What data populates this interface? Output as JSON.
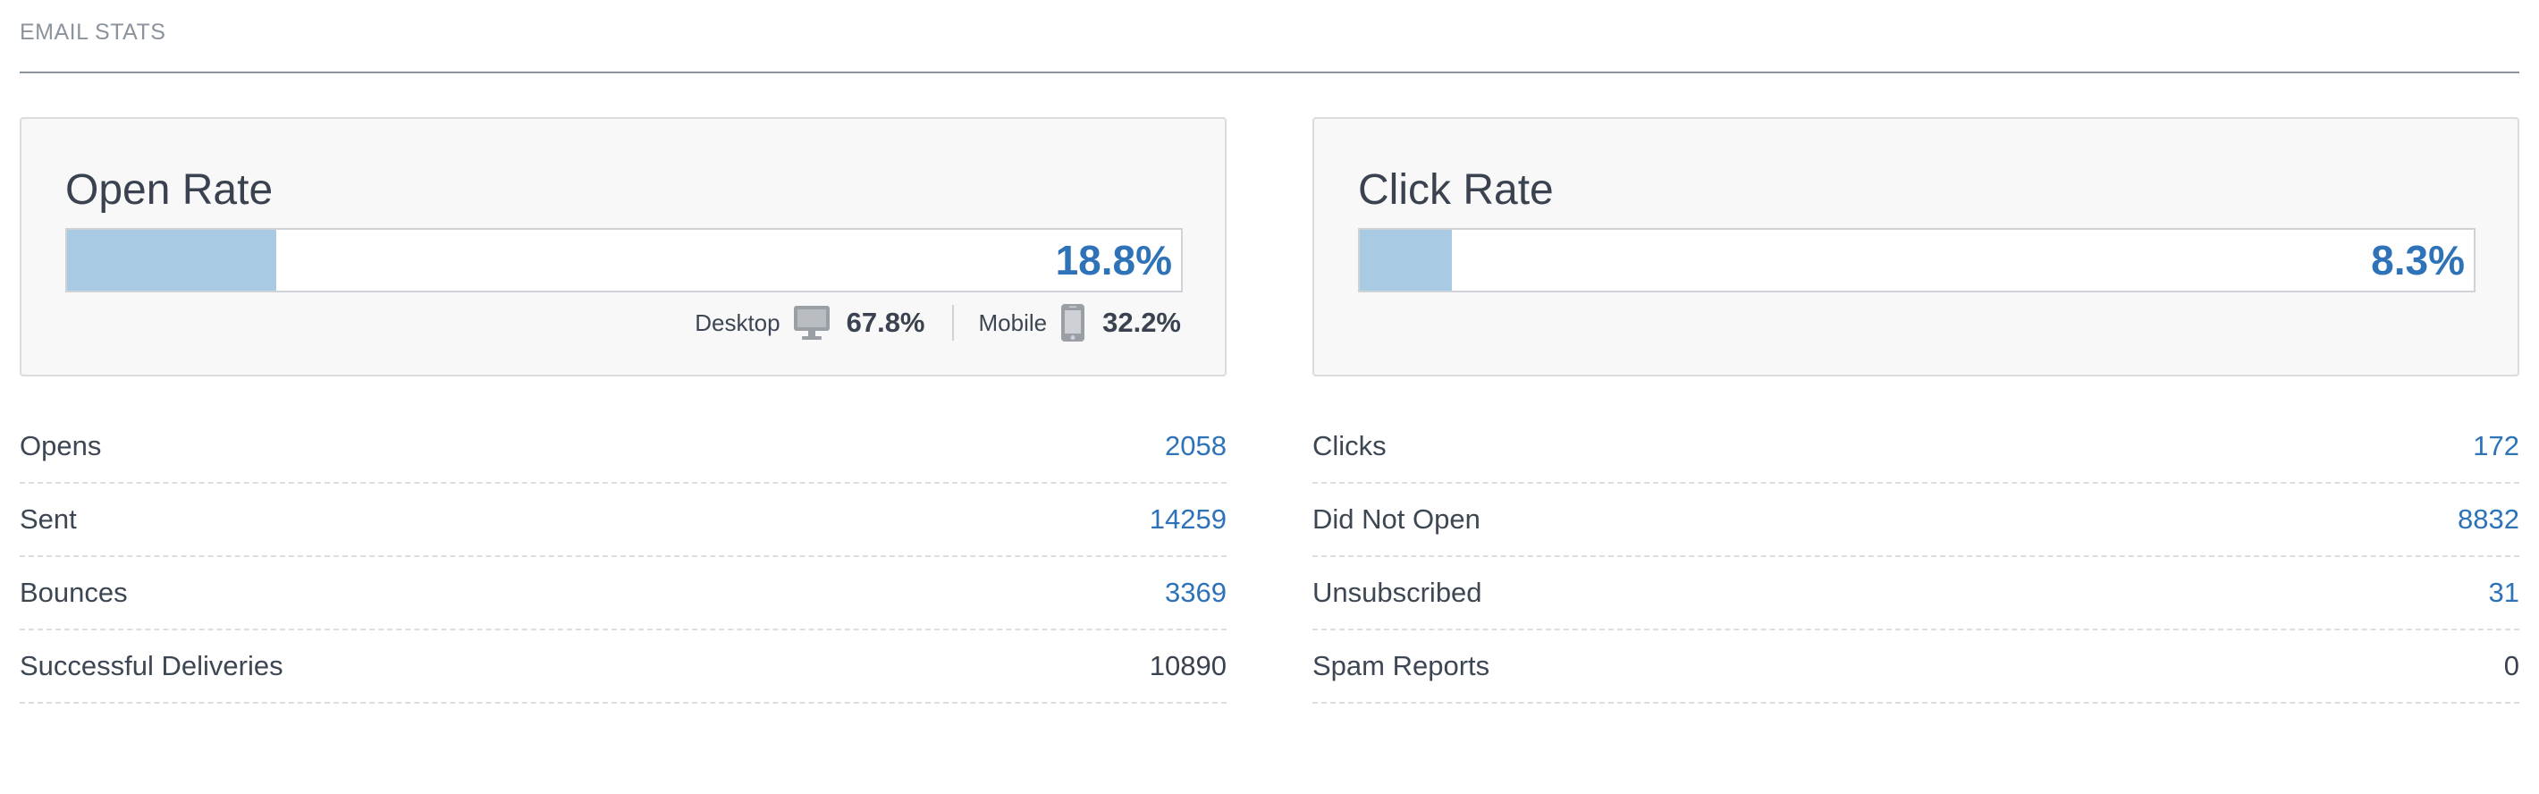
{
  "section": {
    "title": "EMAIL STATS"
  },
  "open_rate": {
    "title": "Open Rate",
    "value_label": "18.8%",
    "fraction": 0.188,
    "devices": [
      {
        "label": "Desktop",
        "icon": "desktop-icon",
        "value": "67.8%"
      },
      {
        "label": "Mobile",
        "icon": "mobile-phone-icon",
        "value": "32.2%"
      }
    ]
  },
  "click_rate": {
    "title": "Click Rate",
    "value_label": "8.3%",
    "fraction": 0.083
  },
  "left_stats": [
    {
      "label": "Opens",
      "value": "2058",
      "link": true
    },
    {
      "label": "Sent",
      "value": "14259",
      "link": true
    },
    {
      "label": "Bounces",
      "value": "3369",
      "link": true
    },
    {
      "label": "Successful Deliveries",
      "value": "10890",
      "link": false
    }
  ],
  "right_stats": [
    {
      "label": "Clicks",
      "value": "172",
      "link": true
    },
    {
      "label": "Did Not Open",
      "value": "8832",
      "link": true
    },
    {
      "label": "Unsubscribed",
      "value": "31",
      "link": true
    },
    {
      "label": "Spam Reports",
      "value": "0",
      "link": false
    }
  ],
  "colors": {
    "accent": "#2e72b8",
    "bar_fill": "#a8cae2",
    "text": "#3d4653"
  }
}
